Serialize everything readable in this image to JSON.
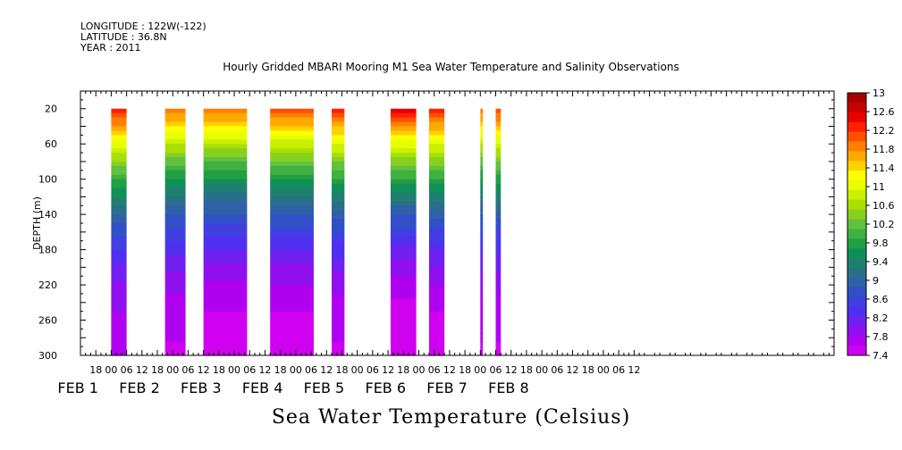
{
  "header": {
    "longitude": "LONGITUDE : 122W(-122)",
    "latitude": "LATITUDE : 36.8N",
    "year": "YEAR : 2011"
  },
  "caption": "Sea Water Temperature (Celsius)",
  "chart_data": {
    "type": "heatmap",
    "title": "Hourly Gridded MBARI Mooring M1 Sea Water Temperature and Salinity Observations",
    "ylabel": "DEPTH (m)",
    "xlabel": "",
    "y_reversed": true,
    "ylim": [
      0,
      300
    ],
    "y_ticks": [
      20,
      60,
      100,
      140,
      180,
      220,
      260,
      300
    ],
    "x_range_hours": [
      -12,
      282
    ],
    "x_tick_labels": [
      "18",
      "00",
      "06",
      "12",
      "18",
      "00",
      "06",
      "12",
      "18",
      "00",
      "06",
      "12",
      "18",
      "00",
      "06",
      "12",
      "18",
      "00",
      "06",
      "12",
      "18",
      "00",
      "06",
      "12",
      "18",
      "00",
      "06",
      "12",
      "18",
      "00",
      "06",
      "12",
      "18",
      "00",
      "06",
      "12"
    ],
    "date_labels": [
      {
        "text": "FEB  1"
      },
      {
        "text": "FEB  2"
      },
      {
        "text": "FEB  3"
      },
      {
        "text": "FEB  4"
      },
      {
        "text": "FEB  5"
      },
      {
        "text": "FEB  6"
      },
      {
        "text": "FEB  7"
      },
      {
        "text": "FEB  8"
      }
    ],
    "colorbar": {
      "min": 7.4,
      "max": 13.0,
      "labels": [
        "13",
        "12.6",
        "12.2",
        "11.8",
        "11.4",
        "11",
        "10.6",
        "10.2",
        "9.8",
        "9.4",
        "9",
        "8.6",
        "8.2",
        "7.8",
        "7.4"
      ],
      "colors": [
        "#a80000",
        "#c80000",
        "#e80000",
        "#ff2000",
        "#ff5000",
        "#ff8000",
        "#ffa800",
        "#ffd000",
        "#ffff00",
        "#e8ff00",
        "#c8f000",
        "#a8e000",
        "#88d020",
        "#60c040",
        "#40b040",
        "#20a040",
        "#109058",
        "#208070",
        "#287088",
        "#3060a8",
        "#3050c8",
        "#4040e0",
        "#5030f0",
        "#7020f0",
        "#9010f0",
        "#b000f0",
        "#d000f0"
      ]
    },
    "data_segments": [
      {
        "start": "FEB 1 00",
        "end": "FEB 1 06",
        "surface_temp": 12.4,
        "bottom_temp": 7.7
      },
      {
        "start": "FEB 1 21",
        "end": "FEB 2 05",
        "surface_temp": 12.0,
        "bottom_temp": 7.6
      },
      {
        "start": "FEB 2 12",
        "end": "FEB 3 05",
        "surface_temp": 12.0,
        "bottom_temp": 7.5
      },
      {
        "start": "FEB 3 14",
        "end": "FEB 4 07",
        "surface_temp": 12.2,
        "bottom_temp": 7.5
      },
      {
        "start": "FEB 4 14",
        "end": "FEB 4 19",
        "surface_temp": 12.3,
        "bottom_temp": 7.6
      },
      {
        "start": "FEB 5 13",
        "end": "FEB 5 23",
        "surface_temp": 12.5,
        "bottom_temp": 7.4
      },
      {
        "start": "FEB 6 04",
        "end": "FEB 6 10",
        "surface_temp": 12.4,
        "bottom_temp": 7.5
      },
      {
        "start": "FEB 7 00",
        "end": "FEB 7 01",
        "surface_temp": 12.0,
        "bottom_temp": 7.6
      },
      {
        "start": "FEB 7 06",
        "end": "FEB 7 08",
        "surface_temp": 12.2,
        "bottom_temp": 7.6
      }
    ]
  }
}
